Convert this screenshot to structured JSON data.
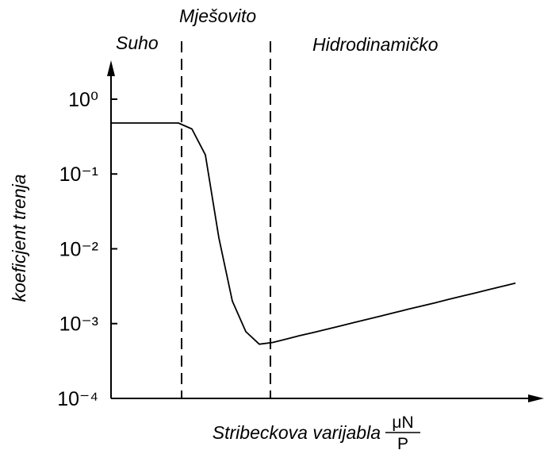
{
  "chart_data": {
    "type": "line",
    "annotations": [
      "Suho",
      "Mješovito",
      "Hidrodinamičko"
    ],
    "ylabel": "koeficjent trenja",
    "xlabel": "Stribeckova varijabla",
    "xlabel_fraction": {
      "numerator": "μN",
      "denominator": "P"
    },
    "log_y": true,
    "ylim": [
      0.0001,
      3
    ],
    "yticks": [
      {
        "value": 1,
        "label": "10⁰"
      },
      {
        "value": 0.1,
        "label": "10⁻¹"
      },
      {
        "value": 0.01,
        "label": "10⁻²"
      },
      {
        "value": 0.001,
        "label": "10⁻³"
      },
      {
        "value": 0.0001,
        "label": "10⁻⁴"
      }
    ],
    "color": "#000000",
    "categories": [
      null,
      null,
      null,
      null,
      null,
      null,
      null,
      null,
      null,
      null,
      null,
      null,
      null,
      null,
      null,
      null,
      null,
      null,
      null,
      null,
      null,
      null,
      null,
      null,
      null,
      null,
      null,
      null,
      null,
      null,
      null
    ],
    "values": [
      0.48,
      0.48,
      0.48,
      0.48,
      0.48,
      0.48,
      0.4,
      0.18,
      0.014,
      0.002,
      0.00078,
      0.00053,
      0.00056,
      0.00062,
      0.00069,
      0.00076,
      0.00084,
      0.00093,
      0.00103,
      0.00114,
      0.00126,
      0.0014,
      0.00155,
      0.00171,
      0.00189,
      0.0021,
      0.00232,
      0.00256,
      0.00284,
      0.00314,
      0.00348
    ]
  }
}
